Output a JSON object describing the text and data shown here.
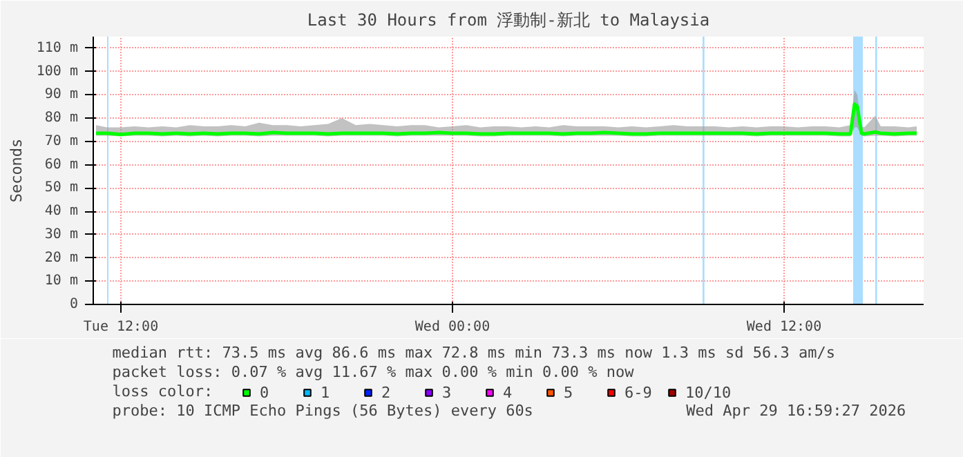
{
  "chart_data": {
    "type": "line",
    "title": "Last 30 Hours from 浮動制-新北 to Malaysia",
    "ylabel": "Seconds",
    "x": [
      "2026-04-28T11:06",
      "2026-04-28T11:30",
      "2026-04-28T12:00",
      "2026-04-28T12:30",
      "2026-04-28T13:00",
      "2026-04-28T13:30",
      "2026-04-28T14:00",
      "2026-04-28T14:30",
      "2026-04-28T15:00",
      "2026-04-28T15:30",
      "2026-04-28T16:00",
      "2026-04-28T16:30",
      "2026-04-28T17:00",
      "2026-04-28T17:30",
      "2026-04-28T18:00",
      "2026-04-28T18:30",
      "2026-04-28T19:00",
      "2026-04-28T19:30",
      "2026-04-28T20:00",
      "2026-04-28T20:30",
      "2026-04-28T21:00",
      "2026-04-28T21:30",
      "2026-04-28T22:00",
      "2026-04-28T22:30",
      "2026-04-28T23:00",
      "2026-04-28T23:30",
      "2026-04-29T00:00",
      "2026-04-29T00:30",
      "2026-04-29T01:00",
      "2026-04-29T01:30",
      "2026-04-29T02:00",
      "2026-04-29T02:30",
      "2026-04-29T03:00",
      "2026-04-29T03:30",
      "2026-04-29T04:00",
      "2026-04-29T04:30",
      "2026-04-29T05:00",
      "2026-04-29T05:30",
      "2026-04-29T06:00",
      "2026-04-29T06:30",
      "2026-04-29T07:00",
      "2026-04-29T07:30",
      "2026-04-29T08:00",
      "2026-04-29T08:30",
      "2026-04-29T09:00",
      "2026-04-29T09:30",
      "2026-04-29T10:00",
      "2026-04-29T10:30",
      "2026-04-29T11:00",
      "2026-04-29T11:30",
      "2026-04-29T12:00",
      "2026-04-29T12:30",
      "2026-04-29T13:00",
      "2026-04-29T13:30",
      "2026-04-29T14:00",
      "2026-04-29T14:24",
      "2026-04-29T14:33",
      "2026-04-29T14:39",
      "2026-04-29T14:48",
      "2026-04-29T14:54",
      "2026-04-29T15:18",
      "2026-04-29T15:30",
      "2026-04-29T16:00",
      "2026-04-29T16:30",
      "2026-04-29T16:48"
    ],
    "series": [
      {
        "name": "0",
        "color": "#00ff00",
        "values": [
          73.5,
          73.5,
          73,
          73.5,
          73.5,
          73.2,
          73.5,
          73.2,
          73.5,
          73.2,
          73.5,
          73.5,
          73.2,
          73.8,
          73.5,
          73.5,
          73.5,
          73.2,
          73.5,
          73.5,
          73.5,
          73.5,
          73.2,
          73.5,
          73.5,
          73.8,
          73.5,
          73.5,
          73.2,
          73.2,
          73.5,
          73.5,
          73.5,
          73.5,
          73.2,
          73.5,
          73.5,
          73.8,
          73.5,
          73.2,
          73.2,
          73.5,
          73.5,
          73.5,
          73.5,
          73.5,
          73.5,
          73.5,
          73.2,
          73.5,
          73.5,
          73.5,
          73.5,
          73.5,
          73.2,
          73.2,
          86,
          85,
          73.5,
          73.2,
          74,
          73.5,
          73.2,
          73.5,
          73.5
        ],
        "lower": [
          72.5,
          72.5,
          72.2,
          72.5,
          72.5,
          72.2,
          72.5,
          72.2,
          72.5,
          72.2,
          72.5,
          72.5,
          72.2,
          72.5,
          72.5,
          72.5,
          72.5,
          72.2,
          72.5,
          72.5,
          72.5,
          72.5,
          72.2,
          72.5,
          72.5,
          72.5,
          72.5,
          72.5,
          72.2,
          72.2,
          72.5,
          72.5,
          72.5,
          72.5,
          72.2,
          72.5,
          72.5,
          72.5,
          72.5,
          72.2,
          72.2,
          72.5,
          72.5,
          72.5,
          72.5,
          72.5,
          72.5,
          72.5,
          72.2,
          72.5,
          72.5,
          72.5,
          72.5,
          72.5,
          72.2,
          72.2,
          76,
          76,
          72.5,
          72.2,
          72.5,
          72.5,
          72.2,
          72.5,
          72.5
        ],
        "upper": [
          77,
          76,
          76,
          76.5,
          76,
          76.5,
          76,
          77,
          76.5,
          76.5,
          77,
          76.5,
          78,
          77,
          77,
          76.5,
          77,
          77.5,
          80,
          77,
          77.5,
          77,
          76.5,
          77,
          77,
          76,
          76.5,
          77,
          76,
          76.5,
          76.5,
          76,
          76.5,
          76,
          77,
          76.5,
          76.5,
          76.5,
          76,
          76.5,
          76,
          76.5,
          77,
          76.5,
          76.5,
          76.5,
          76,
          76.5,
          76,
          76.5,
          76.5,
          76,
          76.5,
          76.5,
          76,
          77,
          92,
          90,
          76.5,
          76,
          81,
          76.5,
          76.5,
          76,
          76.5
        ]
      },
      {
        "name": "1",
        "color": "#00bbff",
        "values": [
          null,
          null,
          null,
          null,
          null,
          null,
          null,
          null,
          null,
          null,
          null,
          null,
          null,
          null,
          null,
          null,
          null,
          null,
          null,
          null,
          null,
          null,
          null,
          null,
          null,
          null,
          null,
          null,
          null,
          null,
          null,
          null,
          null,
          null,
          null,
          null,
          null,
          null,
          null,
          null,
          null,
          null,
          null,
          null,
          null,
          null,
          null,
          null,
          null,
          null,
          null,
          null,
          null,
          null,
          null,
          null,
          null,
          null,
          null,
          null,
          null,
          null,
          null,
          null,
          null
        ]
      },
      {
        "name": "2",
        "color": "#0022ff",
        "values": [
          null,
          null,
          null,
          null,
          null,
          null,
          null,
          null,
          null,
          null,
          null,
          null,
          null,
          null,
          null,
          null,
          null,
          null,
          null,
          null,
          null,
          null,
          null,
          null,
          null,
          null,
          null,
          null,
          null,
          null,
          null,
          null,
          null,
          null,
          null,
          null,
          null,
          null,
          null,
          null,
          null,
          null,
          null,
          null,
          null,
          null,
          null,
          null,
          null,
          null,
          null,
          null,
          null,
          null,
          null,
          null,
          null,
          null,
          null,
          null,
          null,
          null,
          null,
          null,
          null
        ]
      },
      {
        "name": "3",
        "color": "#8a00ff",
        "values": [
          null,
          null,
          null,
          null,
          null,
          null,
          null,
          null,
          null,
          null,
          null,
          null,
          null,
          null,
          null,
          null,
          null,
          null,
          null,
          null,
          null,
          null,
          null,
          null,
          null,
          null,
          null,
          null,
          null,
          null,
          null,
          null,
          null,
          null,
          null,
          null,
          null,
          null,
          null,
          null,
          null,
          null,
          null,
          null,
          null,
          null,
          null,
          null,
          null,
          null,
          null,
          null,
          null,
          null,
          null,
          null,
          null,
          null,
          null,
          null,
          null,
          null,
          null,
          null,
          null
        ]
      },
      {
        "name": "4",
        "color": "#ff00ff",
        "values": [
          null,
          null,
          null,
          null,
          null,
          null,
          null,
          null,
          null,
          null,
          null,
          null,
          null,
          null,
          null,
          null,
          null,
          null,
          null,
          null,
          null,
          null,
          null,
          null,
          null,
          null,
          null,
          null,
          null,
          null,
          null,
          null,
          null,
          null,
          null,
          null,
          null,
          null,
          null,
          null,
          null,
          null,
          null,
          null,
          null,
          null,
          null,
          null,
          null,
          null,
          null,
          null,
          null,
          null,
          null,
          null,
          null,
          null,
          null,
          null,
          null,
          null,
          null,
          null,
          null
        ]
      },
      {
        "name": "5",
        "color": "#ff5500",
        "values": [
          null,
          null,
          null,
          null,
          null,
          null,
          null,
          null,
          null,
          null,
          null,
          null,
          null,
          null,
          null,
          null,
          null,
          null,
          null,
          null,
          null,
          null,
          null,
          null,
          null,
          null,
          null,
          null,
          null,
          null,
          null,
          null,
          null,
          null,
          null,
          null,
          null,
          null,
          null,
          null,
          null,
          null,
          null,
          null,
          null,
          null,
          null,
          null,
          null,
          null,
          null,
          null,
          null,
          null,
          null,
          null,
          null,
          null,
          null,
          null,
          null,
          null,
          null,
          null,
          null
        ]
      },
      {
        "name": "6-9",
        "color": "#ff0000",
        "values": [
          null,
          null,
          null,
          null,
          null,
          null,
          null,
          null,
          null,
          null,
          null,
          null,
          null,
          null,
          null,
          null,
          null,
          null,
          null,
          null,
          null,
          null,
          null,
          null,
          null,
          null,
          null,
          null,
          null,
          null,
          null,
          null,
          null,
          null,
          null,
          null,
          null,
          null,
          null,
          null,
          null,
          null,
          null,
          null,
          null,
          null,
          null,
          null,
          null,
          null,
          null,
          null,
          null,
          null,
          null,
          null,
          null,
          null,
          null,
          null,
          null,
          null,
          null,
          null,
          null
        ]
      },
      {
        "name": "10/10",
        "color": "#a10000",
        "values": [
          null,
          null,
          null,
          null,
          null,
          null,
          null,
          null,
          null,
          null,
          null,
          null,
          null,
          null,
          null,
          null,
          null,
          null,
          null,
          null,
          null,
          null,
          null,
          null,
          null,
          null,
          null,
          null,
          null,
          null,
          null,
          null,
          null,
          null,
          null,
          null,
          null,
          null,
          null,
          null,
          null,
          null,
          null,
          null,
          null,
          null,
          null,
          null,
          null,
          null,
          null,
          null,
          null,
          null,
          null,
          null,
          null,
          null,
          null,
          null,
          null,
          null,
          null,
          null,
          null
        ]
      }
    ],
    "xlim": [
      "2026-04-28T11:00",
      "2026-04-29T17:03"
    ],
    "xticks": [
      {
        "value": "2026-04-28T12:00",
        "label": "Tue 12:00"
      },
      {
        "value": "2026-04-29T00:00",
        "label": "Wed 00:00"
      },
      {
        "value": "2026-04-29T12:00",
        "label": "Wed 12:00"
      }
    ],
    "ylim": [
      0,
      115
    ],
    "yticks": [
      0,
      {
        "value": 10,
        "label": "10 m"
      },
      {
        "value": 20,
        "label": "20 m"
      },
      {
        "value": 30,
        "label": "30 m"
      },
      {
        "value": 40,
        "label": "40 m"
      },
      {
        "value": 50,
        "label": "50 m"
      },
      {
        "value": 60,
        "label": "60 m"
      },
      {
        "value": 70,
        "label": "70 m"
      },
      {
        "value": 80,
        "label": "80 m"
      },
      {
        "value": 90,
        "label": "90 m"
      },
      {
        "value": 100,
        "label": "100 m"
      },
      {
        "value": 110,
        "label": "110 m"
      }
    ],
    "bands": [
      {
        "axis": "x",
        "from": "2026-04-28T11:30",
        "to": "2026-04-28T11:33",
        "color": "#aaddff"
      },
      {
        "axis": "x",
        "from": "2026-04-29T09:03",
        "to": "2026-04-29T09:07",
        "color": "#aaddff"
      },
      {
        "axis": "x",
        "from": "2026-04-29T14:30",
        "to": "2026-04-29T14:51",
        "color": "#aaddff"
      },
      {
        "axis": "x",
        "from": "2026-04-29T15:18",
        "to": "2026-04-29T15:22",
        "color": "#aaddff"
      }
    ],
    "grid": true,
    "legend": "bottom",
    "line_style": "solid",
    "annotations": [
      "median rtt:  73.5 ms avg  86.6 ms max  72.8 ms min  73.3 ms now  1.3 ms sd  56.3   am/s",
      "packet loss: 0.07 % avg  11.67 % max  0.00 % min  0.00 % now",
      "loss color:",
      "probe:       10 ICMP Echo Pings (56 Bytes) every 60s",
      "Wed Apr 29 16:59:27 2026"
    ]
  }
}
